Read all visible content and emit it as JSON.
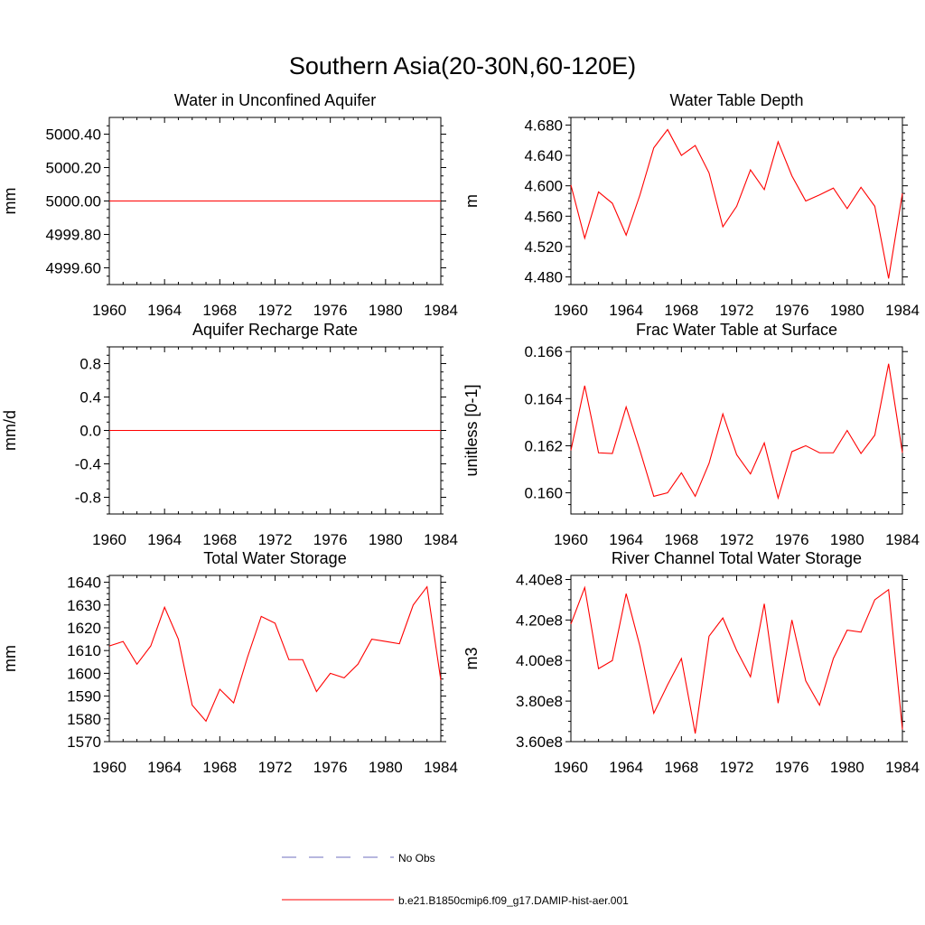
{
  "figure": {
    "title": "Southern Asia(20-30N,60-120E)",
    "line_color": "#ff0000",
    "obs_color": "#6f6fbf"
  },
  "legend": {
    "obs_label": "No Obs",
    "model_label": "b.e21.B1850cmip6.f09_g17.DAMIP-hist-aer.001"
  },
  "chart_data": [
    {
      "type": "line",
      "title": "Water in Unconfined Aquifer",
      "ylabel": "mm",
      "xlim": [
        1960,
        1984
      ],
      "ylim": [
        4999.5,
        5000.5
      ],
      "xticks": [
        1960,
        1964,
        1968,
        1972,
        1976,
        1980,
        1984
      ],
      "yticks": [
        4999.6,
        4999.8,
        5000.0,
        5000.2,
        5000.4
      ],
      "yticklabels": [
        "4999.60",
        "4999.80",
        "5000.00",
        "5000.20",
        "5000.40"
      ],
      "series": [
        {
          "name": "b.e21.B1850cmip6.f09_g17.DAMIP-hist-aer.001",
          "x": [
            1960,
            1961,
            1962,
            1963,
            1964,
            1965,
            1966,
            1967,
            1968,
            1969,
            1970,
            1971,
            1972,
            1973,
            1974,
            1975,
            1976,
            1977,
            1978,
            1979,
            1980,
            1981,
            1982,
            1983,
            1984
          ],
          "y": [
            5000,
            5000,
            5000,
            5000,
            5000,
            5000,
            5000,
            5000,
            5000,
            5000,
            5000,
            5000,
            5000,
            5000,
            5000,
            5000,
            5000,
            5000,
            5000,
            5000,
            5000,
            5000,
            5000,
            5000,
            5000
          ]
        }
      ]
    },
    {
      "type": "line",
      "title": "Water Table Depth",
      "ylabel": "m",
      "xlim": [
        1960,
        1984
      ],
      "ylim": [
        4.47,
        4.69
      ],
      "xticks": [
        1960,
        1964,
        1968,
        1972,
        1976,
        1980,
        1984
      ],
      "yticks": [
        4.48,
        4.52,
        4.56,
        4.6,
        4.64,
        4.68
      ],
      "yticklabels": [
        "4.480",
        "4.520",
        "4.560",
        "4.600",
        "4.640",
        "4.680"
      ],
      "series": [
        {
          "name": "b.e21.B1850cmip6.f09_g17.DAMIP-hist-aer.001",
          "x": [
            1960,
            1961,
            1962,
            1963,
            1964,
            1965,
            1966,
            1967,
            1968,
            1969,
            1970,
            1971,
            1972,
            1973,
            1974,
            1975,
            1976,
            1977,
            1978,
            1979,
            1980,
            1981,
            1982,
            1983,
            1984
          ],
          "y": [
            4.601,
            4.531,
            4.592,
            4.577,
            4.535,
            4.588,
            4.65,
            4.674,
            4.64,
            4.653,
            4.617,
            4.546,
            4.573,
            4.621,
            4.595,
            4.658,
            4.613,
            4.58,
            4.588,
            4.597,
            4.57,
            4.598,
            4.573,
            4.478,
            4.59
          ]
        }
      ]
    },
    {
      "type": "line",
      "title": "Aquifer Recharge Rate",
      "ylabel": "mm/d",
      "xlim": [
        1960,
        1984
      ],
      "ylim": [
        -1.0,
        1.0
      ],
      "xticks": [
        1960,
        1964,
        1968,
        1972,
        1976,
        1980,
        1984
      ],
      "yticks": [
        -0.8,
        -0.4,
        0.0,
        0.4,
        0.8
      ],
      "yticklabels": [
        "-0.8",
        "-0.4",
        "0.0",
        "0.4",
        "0.8"
      ],
      "series": [
        {
          "name": "b.e21.B1850cmip6.f09_g17.DAMIP-hist-aer.001",
          "x": [
            1960,
            1961,
            1962,
            1963,
            1964,
            1965,
            1966,
            1967,
            1968,
            1969,
            1970,
            1971,
            1972,
            1973,
            1974,
            1975,
            1976,
            1977,
            1978,
            1979,
            1980,
            1981,
            1982,
            1983,
            1984
          ],
          "y": [
            0,
            0,
            0,
            0,
            0,
            0,
            0,
            0,
            0,
            0,
            0,
            0,
            0,
            0,
            0,
            0,
            0,
            0,
            0,
            0,
            0,
            0,
            0,
            0,
            0
          ]
        }
      ]
    },
    {
      "type": "line",
      "title": "Frac Water Table at Surface",
      "ylabel": "unitless [0-1]",
      "xlim": [
        1960,
        1984
      ],
      "ylim": [
        0.1591,
        0.1662
      ],
      "xticks": [
        1960,
        1964,
        1968,
        1972,
        1976,
        1980,
        1984
      ],
      "yticks": [
        0.16,
        0.162,
        0.164,
        0.166
      ],
      "yticklabels": [
        "0.160",
        "0.162",
        "0.164",
        "0.166"
      ],
      "series": [
        {
          "name": "b.e21.B1850cmip6.f09_g17.DAMIP-hist-aer.001",
          "x": [
            1960,
            1961,
            1962,
            1963,
            1964,
            1965,
            1966,
            1967,
            1968,
            1969,
            1970,
            1971,
            1972,
            1973,
            1974,
            1975,
            1976,
            1977,
            1978,
            1979,
            1980,
            1981,
            1982,
            1983,
            1984
          ],
          "y": [
            0.1618,
            0.16455,
            0.1617,
            0.16167,
            0.16365,
            0.1618,
            0.15985,
            0.16,
            0.16085,
            0.15985,
            0.16125,
            0.16335,
            0.16162,
            0.1608,
            0.16212,
            0.15978,
            0.16175,
            0.162,
            0.1617,
            0.1617,
            0.16265,
            0.16167,
            0.16245,
            0.16548,
            0.1617
          ]
        }
      ]
    },
    {
      "type": "line",
      "title": "Total Water Storage",
      "ylabel": "mm",
      "xlim": [
        1960,
        1984
      ],
      "ylim": [
        1570,
        1643
      ],
      "xticks": [
        1960,
        1964,
        1968,
        1972,
        1976,
        1980,
        1984
      ],
      "yticks": [
        1570,
        1580,
        1590,
        1600,
        1610,
        1620,
        1630,
        1640
      ],
      "yticklabels": [
        "1570",
        "1580",
        "1590",
        "1600",
        "1610",
        "1620",
        "1630",
        "1640"
      ],
      "series": [
        {
          "name": "b.e21.B1850cmip6.f09_g17.DAMIP-hist-aer.001",
          "x": [
            1960,
            1961,
            1962,
            1963,
            1964,
            1965,
            1966,
            1967,
            1968,
            1969,
            1970,
            1971,
            1972,
            1973,
            1974,
            1975,
            1976,
            1977,
            1978,
            1979,
            1980,
            1981,
            1982,
            1983,
            1984
          ],
          "y": [
            1612,
            1614,
            1604,
            1612,
            1629,
            1615,
            1586,
            1579,
            1593,
            1587,
            1607,
            1625,
            1622,
            1606,
            1606,
            1592,
            1600,
            1598,
            1604,
            1615,
            1614,
            1613,
            1630,
            1638,
            1597
          ]
        }
      ]
    },
    {
      "type": "line",
      "title": "River Channel Total Water Storage",
      "ylabel": "m3",
      "xlim": [
        1960,
        1984
      ],
      "ylim": [
        360000000.0,
        442000000.0
      ],
      "xticks": [
        1960,
        1964,
        1968,
        1972,
        1976,
        1980,
        1984
      ],
      "yticks": [
        360000000.0,
        380000000.0,
        400000000.0,
        420000000.0,
        440000000.0
      ],
      "yticklabels": [
        "3.60e8",
        "3.80e8",
        "4.00e8",
        "4.20e8",
        "4.40e8"
      ],
      "series": [
        {
          "name": "b.e21.B1850cmip6.f09_g17.DAMIP-hist-aer.001",
          "x": [
            1960,
            1961,
            1962,
            1963,
            1964,
            1965,
            1966,
            1967,
            1968,
            1969,
            1970,
            1971,
            1972,
            1973,
            1974,
            1975,
            1976,
            1977,
            1978,
            1979,
            1980,
            1981,
            1982,
            1983,
            1984
          ],
          "y": [
            418000000.0,
            436000000.0,
            396000000.0,
            400000000.0,
            433000000.0,
            407000000.0,
            374000000.0,
            388000000.0,
            401000000.0,
            364000000.0,
            412000000.0,
            421000000.0,
            405000000.0,
            392000000.0,
            428000000.0,
            379000000.0,
            420000000.0,
            390000000.0,
            378000000.0,
            401000000.0,
            415000000.0,
            414000000.0,
            430000000.0,
            435000000.0,
            366000000.0
          ]
        }
      ]
    }
  ]
}
